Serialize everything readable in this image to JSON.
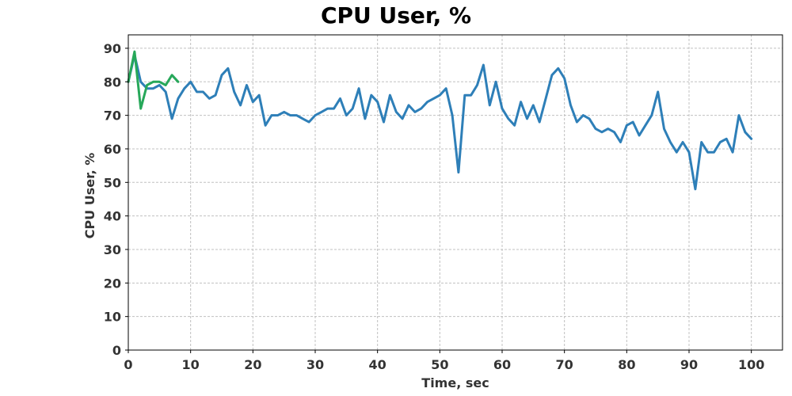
{
  "chart_data": {
    "type": "line",
    "title": "CPU User, %",
    "xlabel": "Time, sec",
    "ylabel": "CPU User, %",
    "xlim": [
      0,
      105
    ],
    "ylim": [
      0,
      94
    ],
    "xticks": [
      0,
      10,
      20,
      30,
      40,
      50,
      60,
      70,
      80,
      90,
      100
    ],
    "yticks": [
      0,
      10,
      20,
      30,
      40,
      50,
      60,
      70,
      80,
      90
    ],
    "grid": true,
    "legend": "none",
    "series": [
      {
        "color": "#2e7fb8",
        "x": [
          0,
          1,
          2,
          3,
          4,
          5,
          6,
          7,
          8,
          9,
          10,
          11,
          12,
          13,
          14,
          15,
          16,
          17,
          18,
          19,
          20,
          21,
          22,
          23,
          24,
          25,
          26,
          27,
          28,
          29,
          30,
          31,
          32,
          33,
          34,
          35,
          36,
          37,
          38,
          39,
          40,
          41,
          42,
          43,
          44,
          45,
          46,
          47,
          48,
          49,
          50,
          51,
          52,
          53,
          54,
          55,
          56,
          57,
          58,
          59,
          60,
          61,
          62,
          63,
          64,
          65,
          66,
          67,
          68,
          69,
          70,
          71,
          72,
          73,
          74,
          75,
          76,
          77,
          78,
          79,
          80,
          81,
          82,
          83,
          84,
          85,
          86,
          87,
          88,
          89,
          90,
          91,
          92,
          93,
          94,
          95,
          96,
          97,
          98,
          99,
          100
        ],
        "y": [
          80,
          88,
          80,
          78,
          78,
          79,
          77,
          69,
          75,
          78,
          80,
          77,
          77,
          75,
          76,
          82,
          84,
          77,
          73,
          79,
          74,
          76,
          67,
          70,
          70,
          71,
          70,
          70,
          69,
          68,
          70,
          71,
          72,
          72,
          75,
          70,
          72,
          78,
          69,
          76,
          74,
          68,
          76,
          71,
          69,
          73,
          71,
          72,
          74,
          75,
          76,
          78,
          70,
          53,
          76,
          76,
          79,
          85,
          73,
          80,
          72,
          69,
          67,
          74,
          69,
          73,
          68,
          75,
          82,
          84,
          81,
          73,
          68,
          70,
          69,
          66,
          65,
          66,
          65,
          62,
          67,
          68,
          64,
          67,
          70,
          77,
          66,
          62,
          59,
          62,
          59,
          48,
          62,
          59,
          59,
          62,
          63,
          59,
          70,
          65,
          63
        ]
      },
      {
        "color": "#27a85a",
        "x": [
          0,
          1,
          2,
          3,
          4,
          5,
          6,
          7,
          8
        ],
        "y": [
          80,
          89,
          72,
          79,
          80,
          80,
          79,
          82,
          80
        ]
      }
    ]
  }
}
